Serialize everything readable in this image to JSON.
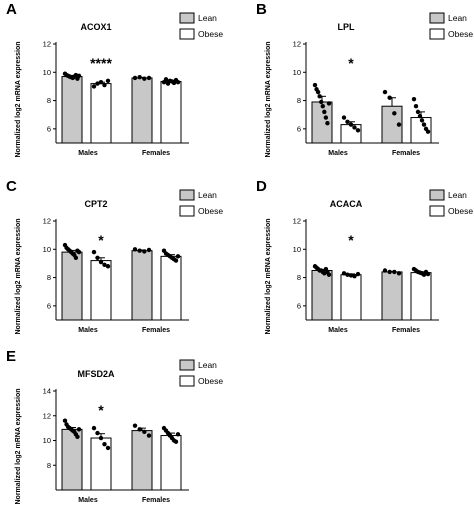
{
  "chart_data": [
    {
      "type": "bar",
      "panel": "A",
      "title": "ACOX1",
      "ylabel": "Normalized log2 mRNA expression",
      "ylim": [
        5,
        12
      ],
      "yticks": [
        "6",
        "8",
        "10",
        "12"
      ],
      "categories": [
        "Males",
        "Females"
      ],
      "significance": [
        "****",
        ""
      ],
      "series": [
        {
          "name": "Lean",
          "color": "#c8c8c8",
          "values": [
            9.7,
            9.6
          ],
          "errors": [
            0.08,
            0.04
          ],
          "points": [
            [
              9.9,
              9.8,
              9.75,
              9.7,
              9.65,
              9.6,
              9.7,
              9.8,
              9.55,
              9.75
            ],
            [
              9.6,
              9.65,
              9.55,
              9.6
            ]
          ]
        },
        {
          "name": "Obese",
          "color": "#ffffff",
          "values": [
            9.2,
            9.35
          ],
          "errors": [
            0.1,
            0.08
          ],
          "points": [
            [
              9.0,
              9.2,
              9.3,
              9.1,
              9.4
            ],
            [
              9.3,
              9.5,
              9.2,
              9.4,
              9.35,
              9.25,
              9.45,
              9.3
            ]
          ]
        }
      ]
    },
    {
      "type": "bar",
      "panel": "B",
      "title": "LPL",
      "ylabel": "Normalized log2 mRNA expression",
      "ylim": [
        5,
        12
      ],
      "yticks": [
        "6",
        "8",
        "10",
        "12"
      ],
      "categories": [
        "Males",
        "Females"
      ],
      "significance": [
        "*",
        ""
      ],
      "series": [
        {
          "name": "Lean",
          "color": "#c8c8c8",
          "values": [
            7.9,
            7.6
          ],
          "errors": [
            0.4,
            0.6
          ],
          "points": [
            [
              9.1,
              8.8,
              8.6,
              8.3,
              7.9,
              7.6,
              7.2,
              6.8,
              6.4,
              7.8
            ],
            [
              8.6,
              8.2,
              7.1,
              6.3
            ]
          ]
        },
        {
          "name": "Obese",
          "color": "#ffffff",
          "values": [
            6.3,
            6.8
          ],
          "errors": [
            0.2,
            0.4
          ],
          "points": [
            [
              6.8,
              6.5,
              6.3,
              6.1,
              5.9
            ],
            [
              8.1,
              7.6,
              7.2,
              6.9,
              6.6,
              6.3,
              6.0,
              5.8
            ]
          ]
        }
      ]
    },
    {
      "type": "bar",
      "panel": "C",
      "title": "CPT2",
      "ylabel": "Normalized log2 mRNA expression",
      "ylim": [
        5,
        12
      ],
      "yticks": [
        "6",
        "8",
        "10",
        "12"
      ],
      "categories": [
        "Males",
        "Females"
      ],
      "significance": [
        "*",
        ""
      ],
      "series": [
        {
          "name": "Lean",
          "color": "#c8c8c8",
          "values": [
            9.8,
            9.9
          ],
          "errors": [
            0.12,
            0.05
          ],
          "points": [
            [
              10.3,
              10.1,
              10.0,
              9.9,
              9.8,
              9.7,
              9.6,
              9.4,
              9.9,
              9.8
            ],
            [
              10.0,
              9.9,
              9.85,
              9.95
            ]
          ]
        },
        {
          "name": "Obese",
          "color": "#ffffff",
          "values": [
            9.2,
            9.5
          ],
          "errors": [
            0.2,
            0.12
          ],
          "points": [
            [
              9.8,
              9.4,
              9.1,
              8.9,
              8.8
            ],
            [
              9.9,
              9.7,
              9.6,
              9.5,
              9.4,
              9.3,
              9.2,
              9.5
            ]
          ]
        }
      ]
    },
    {
      "type": "bar",
      "panel": "D",
      "title": "ACACA",
      "ylabel": "Normalized log2 mRNA expression",
      "ylim": [
        5,
        12
      ],
      "yticks": [
        "6",
        "8",
        "10",
        "12"
      ],
      "categories": [
        "Males",
        "Females"
      ],
      "significance": [
        "*",
        ""
      ],
      "series": [
        {
          "name": "Lean",
          "color": "#c8c8c8",
          "values": [
            8.5,
            8.4
          ],
          "errors": [
            0.07,
            0.04
          ],
          "points": [
            [
              8.8,
              8.7,
              8.6,
              8.5,
              8.5,
              8.4,
              8.3,
              8.6,
              8.4,
              8.2
            ],
            [
              8.5,
              8.4,
              8.4,
              8.3
            ]
          ]
        },
        {
          "name": "Obese",
          "color": "#ffffff",
          "values": [
            8.2,
            8.35
          ],
          "errors": [
            0.06,
            0.06
          ],
          "points": [
            [
              8.3,
              8.2,
              8.15,
              8.1,
              8.25
            ],
            [
              8.6,
              8.5,
              8.4,
              8.35,
              8.3,
              8.2,
              8.4,
              8.25
            ]
          ]
        }
      ]
    },
    {
      "type": "bar",
      "panel": "E",
      "title": "MFSD2A",
      "ylabel": "Normalized log2 mRNA expression",
      "ylim": [
        6,
        14
      ],
      "yticks": [
        "8",
        "10",
        "12",
        "14"
      ],
      "categories": [
        "Males",
        "Females"
      ],
      "significance": [
        "*",
        ""
      ],
      "series": [
        {
          "name": "Lean",
          "color": "#c8c8c8",
          "values": [
            10.9,
            10.8
          ],
          "errors": [
            0.15,
            0.2
          ],
          "points": [
            [
              11.6,
              11.3,
              11.1,
              11.0,
              10.9,
              10.8,
              10.7,
              10.5,
              10.3,
              10.9
            ],
            [
              11.2,
              10.9,
              10.7,
              10.4
            ]
          ]
        },
        {
          "name": "Obese",
          "color": "#ffffff",
          "values": [
            10.2,
            10.4
          ],
          "errors": [
            0.35,
            0.2
          ],
          "points": [
            [
              11.0,
              10.6,
              10.2,
              9.7,
              9.4
            ],
            [
              11.0,
              10.8,
              10.6,
              10.4,
              10.2,
              10.0,
              9.9,
              10.5
            ]
          ]
        }
      ]
    }
  ]
}
